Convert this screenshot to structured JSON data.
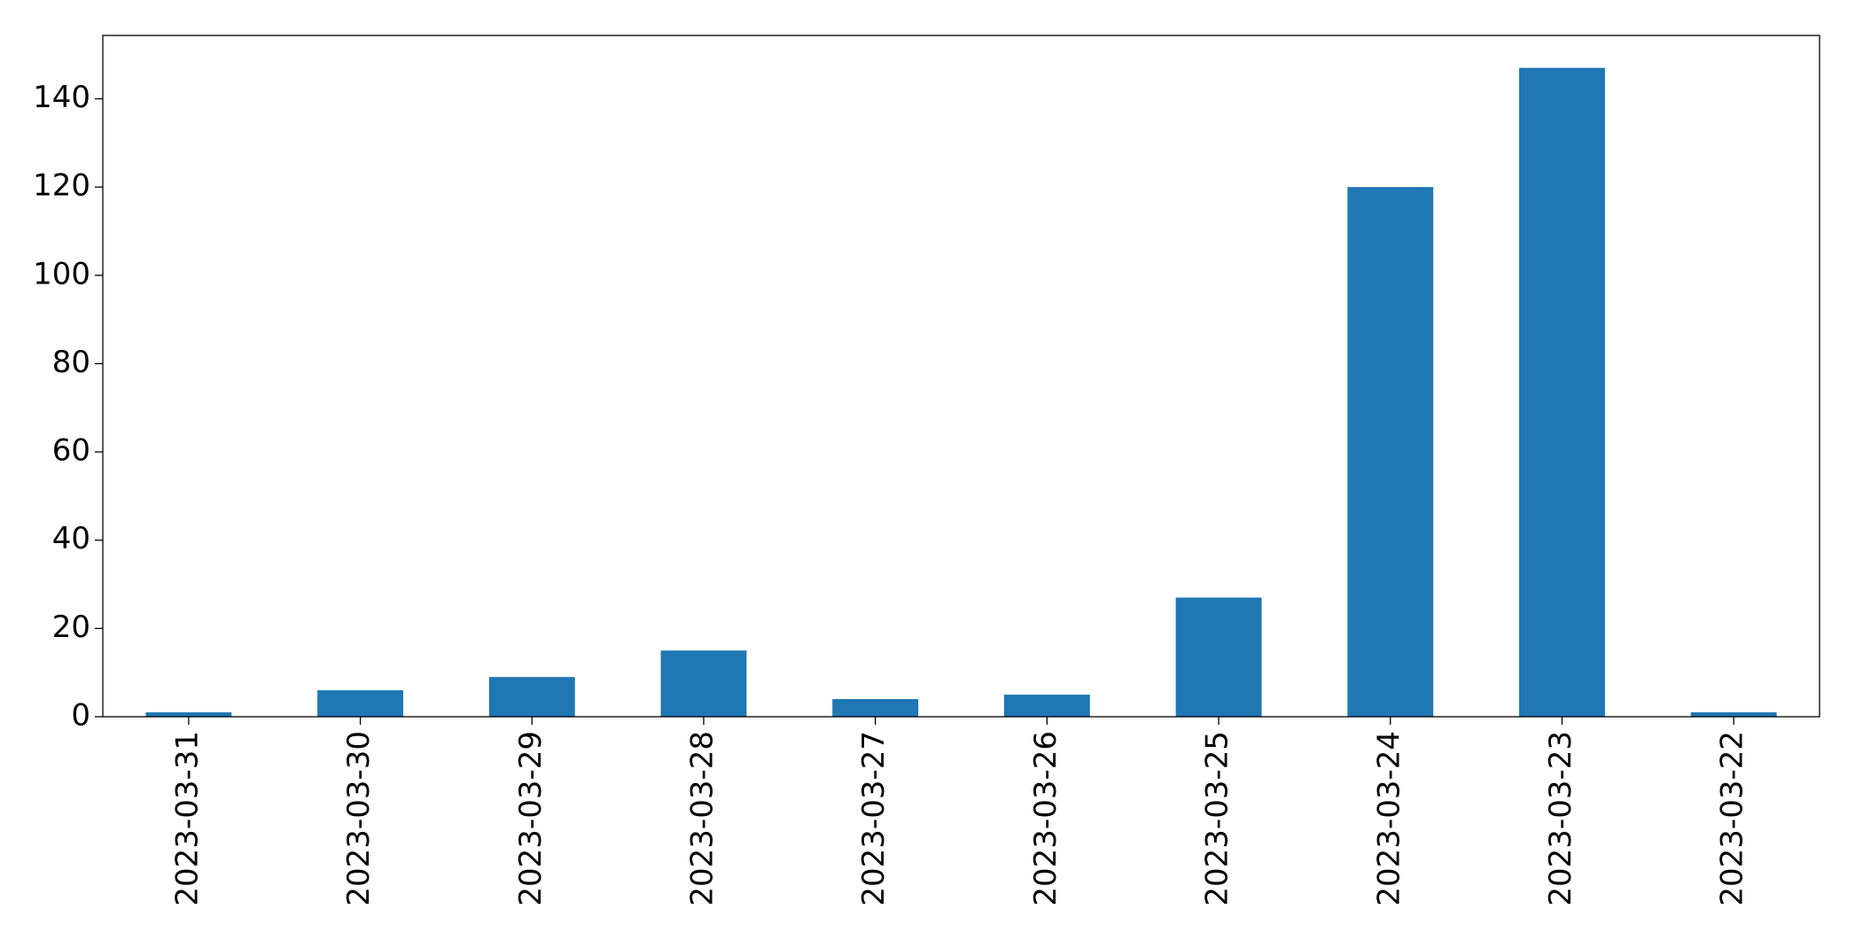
{
  "chart_data": {
    "type": "bar",
    "categories": [
      "2023-03-31",
      "2023-03-30",
      "2023-03-29",
      "2023-03-28",
      "2023-03-27",
      "2023-03-26",
      "2023-03-25",
      "2023-03-24",
      "2023-03-23",
      "2023-03-22"
    ],
    "values": [
      1,
      6,
      9,
      15,
      4,
      5,
      27,
      120,
      147,
      1
    ],
    "color": "#1f77b4",
    "ylim": [
      0,
      154.35
    ],
    "yticks": [
      0,
      20,
      40,
      60,
      80,
      100,
      120,
      140
    ],
    "grid": false
  }
}
